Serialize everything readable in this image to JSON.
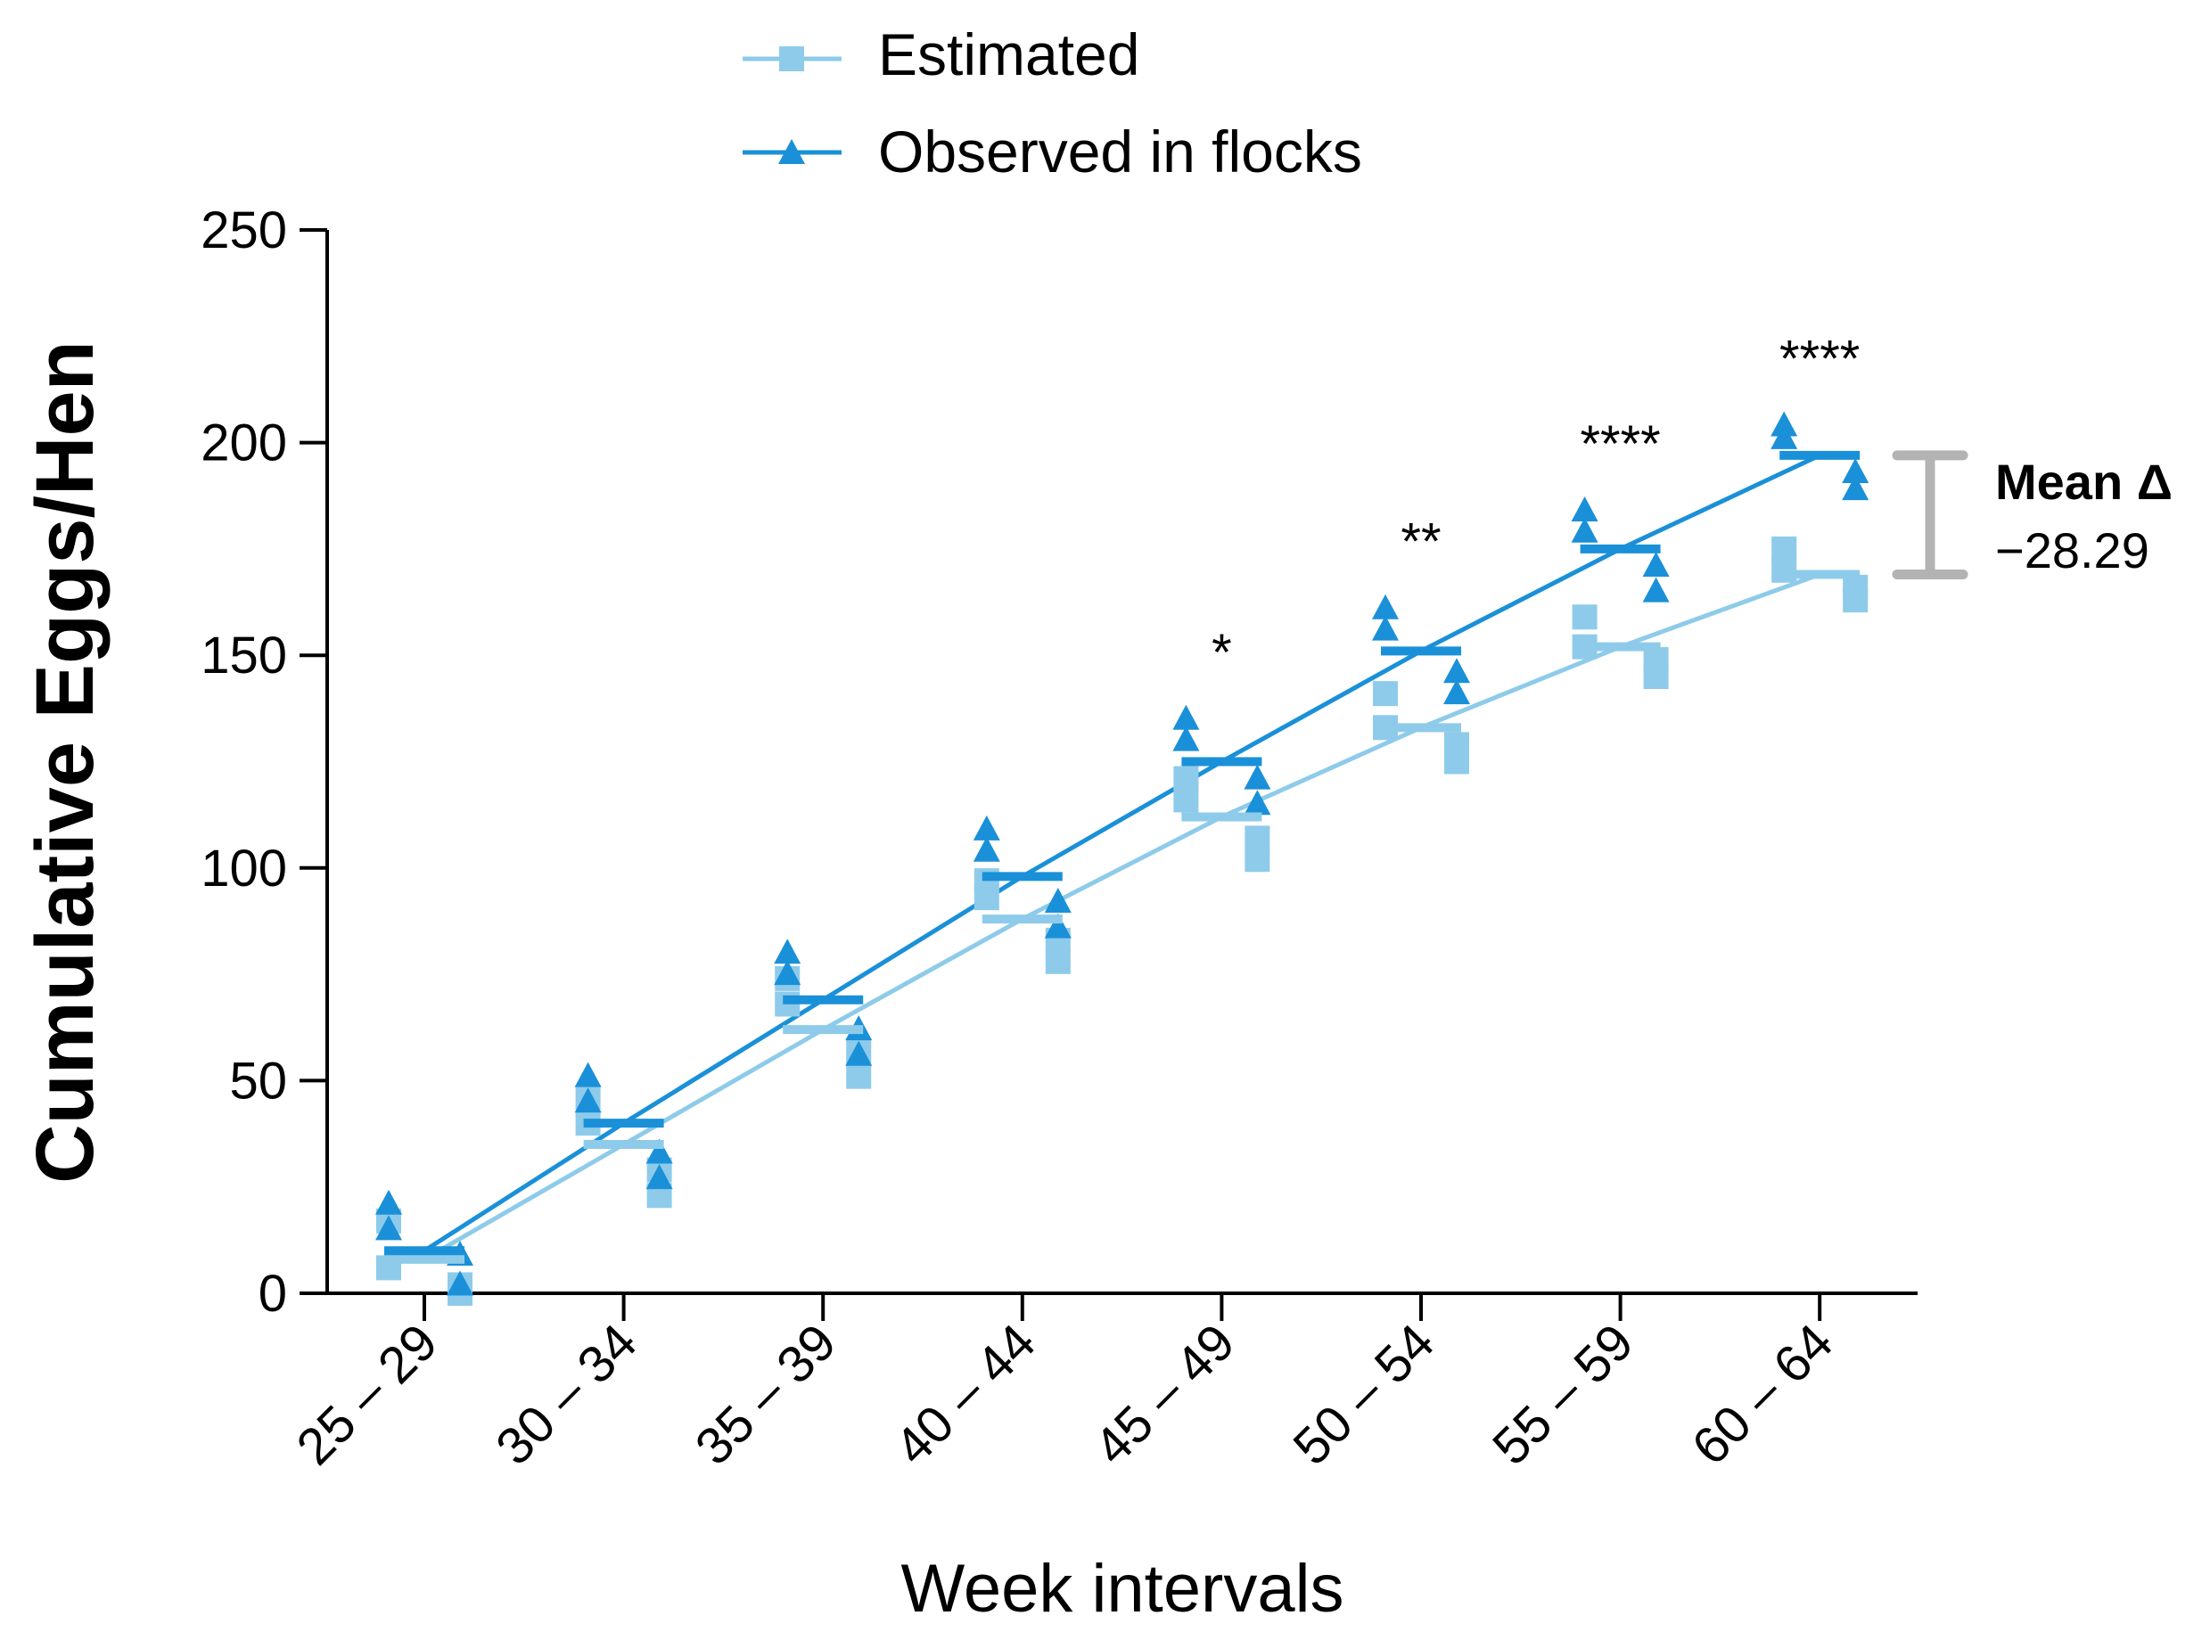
{
  "chart_data": {
    "type": "scatter",
    "title": "",
    "xlabel": "Week intervals",
    "ylabel": "Cumulative Eggs/Hen",
    "ylim": [
      0,
      250
    ],
    "yticks": [
      "0",
      "50",
      "100",
      "150",
      "200",
      "250"
    ],
    "categories": [
      "25 – 29",
      "30 – 34",
      "35 – 39",
      "40 – 44",
      "45 – 49",
      "50 – 54",
      "55 – 59",
      "60 – 64"
    ],
    "legend_position": "top-center",
    "colors": {
      "estimated": "#8ecbea",
      "observed": "#1a90d8",
      "annotation": "#b3b3b3"
    },
    "series": [
      {
        "name": "Estimated",
        "marker": "square",
        "means": [
          8,
          35,
          62,
          88,
          112,
          133,
          152,
          169
        ],
        "points": [
          [
            6,
            17,
            0,
            2
          ],
          [
            40,
            46,
            23,
            29
          ],
          [
            68,
            74,
            51,
            57
          ],
          [
            93,
            97,
            78,
            83
          ],
          [
            116,
            121,
            102,
            107
          ],
          [
            133,
            141,
            125,
            129
          ],
          [
            152,
            159,
            145,
            149
          ],
          [
            170,
            175,
            163,
            166
          ]
        ]
      },
      {
        "name": "Observed in flocks",
        "marker": "triangle",
        "means": [
          10,
          40,
          69,
          98,
          125,
          151,
          175,
          197
        ],
        "points": [
          [
            21,
            15,
            9,
            2
          ],
          [
            45,
            51,
            27,
            33
          ],
          [
            75,
            80,
            56,
            62
          ],
          [
            104,
            109,
            86,
            92
          ],
          [
            130,
            135,
            115,
            121
          ],
          [
            156,
            161,
            141,
            146
          ],
          [
            179,
            184,
            165,
            171
          ],
          [
            204,
            201,
            189,
            193
          ]
        ]
      }
    ],
    "significance": [
      "",
      "",
      "",
      "",
      "*",
      "**",
      "****",
      "****"
    ],
    "annotation": {
      "label": "Mean Δ",
      "value": "−28.29",
      "range": [
        169,
        197
      ]
    }
  }
}
